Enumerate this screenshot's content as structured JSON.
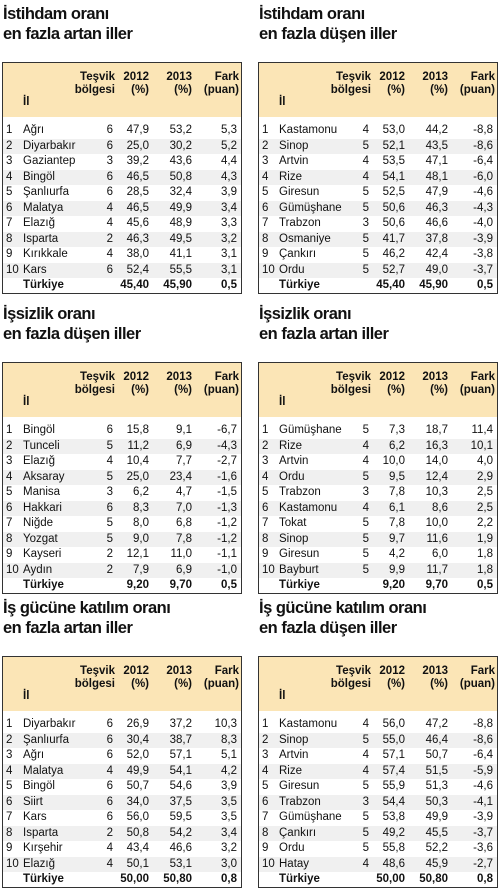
{
  "headers": {
    "il": "İl",
    "tesvik": "Teşvik\nbölgesi",
    "y2012": "2012\n(%)",
    "y2013": "2013\n(%)",
    "fark": "Fark\n(puan)"
  },
  "panels": [
    {
      "title": "İstihdam oranı\nen fazla artan iller",
      "rows": [
        {
          "no": "1",
          "name": "Ağrı",
          "tes": "6",
          "y1": "47,9",
          "y2": "53,2",
          "fark": "5,3"
        },
        {
          "no": "2",
          "name": "Diyarbakır",
          "tes": "6",
          "y1": "25,0",
          "y2": "30,2",
          "fark": "5,2"
        },
        {
          "no": "3",
          "name": "Gaziantep",
          "tes": "3",
          "y1": "39,2",
          "y2": "43,6",
          "fark": "4,4"
        },
        {
          "no": "4",
          "name": "Bingöl",
          "tes": "6",
          "y1": "46,5",
          "y2": "50,8",
          "fark": "4,3"
        },
        {
          "no": "5",
          "name": "Şanlıurfa",
          "tes": "6",
          "y1": "28,5",
          "y2": "32,4",
          "fark": "3,9"
        },
        {
          "no": "6",
          "name": "Malatya",
          "tes": "4",
          "y1": "46,5",
          "y2": "49,9",
          "fark": "3,4"
        },
        {
          "no": "7",
          "name": "Elazığ",
          "tes": "4",
          "y1": "45,6",
          "y2": "48,9",
          "fark": "3,3"
        },
        {
          "no": "8",
          "name": "Isparta",
          "tes": "2",
          "y1": "46,3",
          "y2": "49,5",
          "fark": "3,2"
        },
        {
          "no": "9",
          "name": "Kırıkkale",
          "tes": "4",
          "y1": "38,0",
          "y2": "41,1",
          "fark": "3,1"
        },
        {
          "no": "10",
          "name": "Kars",
          "tes": "6",
          "y1": "52,4",
          "y2": "55,5",
          "fark": "3,1"
        }
      ],
      "total": {
        "name": "Türkiye",
        "y1": "45,40",
        "y2": "45,90",
        "fark": "0,5"
      }
    },
    {
      "title": "İstihdam oranı\nen fazla düşen iller",
      "rows": [
        {
          "no": "1",
          "name": "Kastamonu",
          "tes": "4",
          "y1": "53,0",
          "y2": "44,2",
          "fark": "-8,8"
        },
        {
          "no": "2",
          "name": "Sinop",
          "tes": "5",
          "y1": "52,1",
          "y2": "43,5",
          "fark": "-8,6"
        },
        {
          "no": "3",
          "name": "Artvin",
          "tes": "4",
          "y1": "53,5",
          "y2": "47,1",
          "fark": "-6,4"
        },
        {
          "no": "4",
          "name": "Rize",
          "tes": "4",
          "y1": "54,1",
          "y2": "48,1",
          "fark": "-6,0"
        },
        {
          "no": "5",
          "name": "Giresun",
          "tes": "5",
          "y1": "52,5",
          "y2": "47,9",
          "fark": "-4,6"
        },
        {
          "no": "6",
          "name": "Gümüşhane",
          "tes": "5",
          "y1": "50,6",
          "y2": "46,3",
          "fark": "-4,3"
        },
        {
          "no": "7",
          "name": "Trabzon",
          "tes": "3",
          "y1": "50,6",
          "y2": "46,6",
          "fark": "-4,0"
        },
        {
          "no": "8",
          "name": "Osmaniye",
          "tes": "5",
          "y1": "41,7",
          "y2": "37,8",
          "fark": "-3,9"
        },
        {
          "no": "9",
          "name": "Çankırı",
          "tes": "5",
          "y1": "46,2",
          "y2": "42,4",
          "fark": "-3,8"
        },
        {
          "no": "10",
          "name": "Ordu",
          "tes": "5",
          "y1": "52,7",
          "y2": "49,0",
          "fark": "-3,7"
        }
      ],
      "total": {
        "name": "Türkiye",
        "y1": "45,40",
        "y2": "45,90",
        "fark": "0,5"
      }
    },
    {
      "title": "İşsizlik oranı\nen fazla düşen iller",
      "rows": [
        {
          "no": "1",
          "name": "Bingöl",
          "tes": "6",
          "y1": "15,8",
          "y2": "9,1",
          "fark": "-6,7"
        },
        {
          "no": "2",
          "name": "Tunceli",
          "tes": "5",
          "y1": "11,2",
          "y2": "6,9",
          "fark": "-4,3"
        },
        {
          "no": "3",
          "name": "Elazığ",
          "tes": "4",
          "y1": "10,4",
          "y2": "7,7",
          "fark": "-2,7"
        },
        {
          "no": "4",
          "name": "Aksaray",
          "tes": "5",
          "y1": "25,0",
          "y2": "23,4",
          "fark": "-1,6"
        },
        {
          "no": "5",
          "name": "Manisa",
          "tes": "3",
          "y1": "6,2",
          "y2": "4,7",
          "fark": "-1,5"
        },
        {
          "no": "6",
          "name": "Hakkari",
          "tes": "6",
          "y1": "8,3",
          "y2": "7,0",
          "fark": "-1,3"
        },
        {
          "no": "7",
          "name": "Niğde",
          "tes": "5",
          "y1": "8,0",
          "y2": "6,8",
          "fark": "-1,2"
        },
        {
          "no": "8",
          "name": "Yozgat",
          "tes": "5",
          "y1": "9,0",
          "y2": "7,8",
          "fark": "-1,2"
        },
        {
          "no": "9",
          "name": "Kayseri",
          "tes": "2",
          "y1": "12,1",
          "y2": "11,0",
          "fark": "-1,1"
        },
        {
          "no": "10",
          "name": "Aydın",
          "tes": "2",
          "y1": "7,9",
          "y2": "6,9",
          "fark": "-1,0"
        }
      ],
      "total": {
        "name": "Türkiye",
        "y1": "9,20",
        "y2": "9,70",
        "fark": "0,5"
      }
    },
    {
      "title": "İşsizlik oranı\nen fazla artan iller",
      "rows": [
        {
          "no": "1",
          "name": "Gümüşhane",
          "tes": "5",
          "y1": "7,3",
          "y2": "18,7",
          "fark": "11,4"
        },
        {
          "no": "2",
          "name": "Rize",
          "tes": "4",
          "y1": "6,2",
          "y2": "16,3",
          "fark": "10,1"
        },
        {
          "no": "3",
          "name": "Artvin",
          "tes": "4",
          "y1": "10,0",
          "y2": "14,0",
          "fark": "4,0"
        },
        {
          "no": "4",
          "name": "Ordu",
          "tes": "5",
          "y1": "9,5",
          "y2": "12,4",
          "fark": "2,9"
        },
        {
          "no": "5",
          "name": "Trabzon",
          "tes": "3",
          "y1": "7,8",
          "y2": "10,3",
          "fark": "2,5"
        },
        {
          "no": "6",
          "name": "Kastamonu",
          "tes": "4",
          "y1": "6,1",
          "y2": "8,6",
          "fark": "2,5"
        },
        {
          "no": "7",
          "name": "Tokat",
          "tes": "5",
          "y1": "7,8",
          "y2": "10,0",
          "fark": "2,2"
        },
        {
          "no": "8",
          "name": "Sinop",
          "tes": "5",
          "y1": "9,7",
          "y2": "11,6",
          "fark": "1,9"
        },
        {
          "no": "9",
          "name": "Giresun",
          "tes": "5",
          "y1": "4,2",
          "y2": "6,0",
          "fark": "1,8"
        },
        {
          "no": "10",
          "name": "Bayburt",
          "tes": "5",
          "y1": "9,9",
          "y2": "11,7",
          "fark": "1,8"
        }
      ],
      "total": {
        "name": "Türkiye",
        "y1": "9,20",
        "y2": "9,70",
        "fark": "0,5"
      }
    },
    {
      "title": "İş gücüne katılım oranı\nen fazla artan iller",
      "rows": [
        {
          "no": "1",
          "name": "Diyarbakır",
          "tes": "6",
          "y1": "26,9",
          "y2": "37,2",
          "fark": "10,3"
        },
        {
          "no": "2",
          "name": "Şanlıurfa",
          "tes": "6",
          "y1": "30,4",
          "y2": "38,7",
          "fark": "8,3"
        },
        {
          "no": "3",
          "name": "Ağrı",
          "tes": "6",
          "y1": "52,0",
          "y2": "57,1",
          "fark": "5,1"
        },
        {
          "no": "4",
          "name": "Malatya",
          "tes": "4",
          "y1": "49,9",
          "y2": "54,1",
          "fark": "4,2"
        },
        {
          "no": "5",
          "name": "Bingöl",
          "tes": "6",
          "y1": "50,7",
          "y2": "54,6",
          "fark": "3,9"
        },
        {
          "no": "6",
          "name": "Siirt",
          "tes": "6",
          "y1": "34,0",
          "y2": "37,5",
          "fark": "3,5"
        },
        {
          "no": "7",
          "name": "Kars",
          "tes": "6",
          "y1": "56,0",
          "y2": "59,5",
          "fark": "3,5"
        },
        {
          "no": "8",
          "name": "Isparta",
          "tes": "2",
          "y1": "50,8",
          "y2": "54,2",
          "fark": "3,4"
        },
        {
          "no": "9",
          "name": "Kırşehir",
          "tes": "4",
          "y1": "43,4",
          "y2": "46,6",
          "fark": "3,2"
        },
        {
          "no": "10",
          "name": "Elazığ",
          "tes": "4",
          "y1": "50,1",
          "y2": "53,1",
          "fark": "3,0"
        }
      ],
      "total": {
        "name": "Türkiye",
        "y1": "50,00",
        "y2": "50,80",
        "fark": "0,8"
      }
    },
    {
      "title": "İş gücüne katılım oranı\nen fazla düşen iller",
      "rows": [
        {
          "no": "1",
          "name": "Kastamonu",
          "tes": "4",
          "y1": "56,0",
          "y2": "47,2",
          "fark": "-8,8"
        },
        {
          "no": "2",
          "name": "Sinop",
          "tes": "5",
          "y1": "55,0",
          "y2": "46,4",
          "fark": "-8,6"
        },
        {
          "no": "3",
          "name": "Artvin",
          "tes": "4",
          "y1": "57,1",
          "y2": "50,7",
          "fark": "-6,4"
        },
        {
          "no": "4",
          "name": "Rize",
          "tes": "4",
          "y1": "57,4",
          "y2": "51,5",
          "fark": "-5,9"
        },
        {
          "no": "5",
          "name": "Giresun",
          "tes": "5",
          "y1": "55,9",
          "y2": "51,3",
          "fark": "-4,6"
        },
        {
          "no": "6",
          "name": "Trabzon",
          "tes": "3",
          "y1": "54,4",
          "y2": "50,3",
          "fark": "-4,1"
        },
        {
          "no": "7",
          "name": "Gümüşhane",
          "tes": "5",
          "y1": "53,8",
          "y2": "49,9",
          "fark": "-3,9"
        },
        {
          "no": "8",
          "name": "Çankırı",
          "tes": "5",
          "y1": "49,2",
          "y2": "45,5",
          "fark": "-3,7"
        },
        {
          "no": "9",
          "name": "Ordu",
          "tes": "5",
          "y1": "55,8",
          "y2": "52,2",
          "fark": "-3,6"
        },
        {
          "no": "10",
          "name": "Hatay",
          "tes": "4",
          "y1": "48,6",
          "y2": "45,9",
          "fark": "-2,7"
        }
      ],
      "total": {
        "name": "Türkiye",
        "y1": "50,00",
        "y2": "50,80",
        "fark": "0,8"
      }
    }
  ],
  "colors": {
    "header_bg": "#fbe5b6",
    "row_alt": "#f0f0f0",
    "border": "#333333"
  }
}
